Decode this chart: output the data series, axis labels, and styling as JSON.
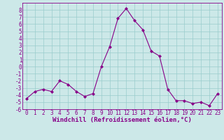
{
  "x": [
    0,
    1,
    2,
    3,
    4,
    5,
    6,
    7,
    8,
    9,
    10,
    11,
    12,
    13,
    14,
    15,
    16,
    17,
    18,
    19,
    20,
    21,
    22,
    23
  ],
  "y": [
    -4.5,
    -3.5,
    -3.2,
    -3.5,
    -2.0,
    -2.5,
    -3.5,
    -4.2,
    -3.8,
    0.0,
    2.8,
    6.8,
    8.2,
    6.5,
    5.2,
    2.2,
    1.5,
    -3.2,
    -4.8,
    -4.8,
    -5.2,
    -5.0,
    -5.5,
    -3.8
  ],
  "bg_color": "#cce8e8",
  "line_color": "#880088",
  "marker_color": "#880088",
  "xlabel": "Windchill (Refroidissement éolien,°C)",
  "xlim_min": -0.5,
  "xlim_max": 23.5,
  "ylim_min": -6,
  "ylim_max": 9,
  "xticks": [
    0,
    1,
    2,
    3,
    4,
    5,
    6,
    7,
    8,
    9,
    10,
    11,
    12,
    13,
    14,
    15,
    16,
    17,
    18,
    19,
    20,
    21,
    22,
    23
  ],
  "yticks": [
    -6,
    -5,
    -4,
    -3,
    -2,
    -1,
    0,
    1,
    2,
    3,
    4,
    5,
    6,
    7,
    8
  ],
  "grid_color": "#99cccc",
  "label_fontsize": 6.5,
  "tick_fontsize": 5.5
}
